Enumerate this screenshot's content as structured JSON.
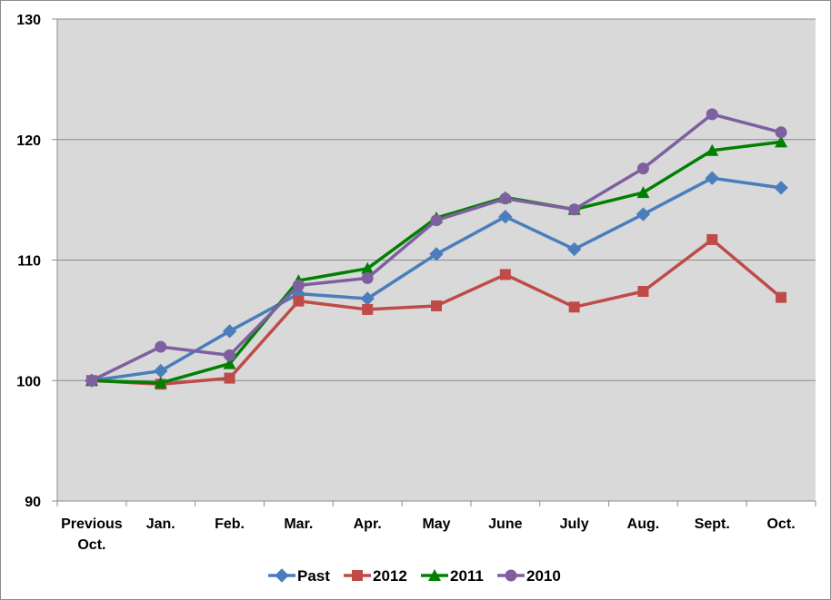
{
  "chart_data": {
    "type": "line",
    "title": "",
    "xlabel": "",
    "ylabel": "",
    "ylim": [
      90,
      130
    ],
    "yticks": [
      "90",
      "100",
      "110",
      "120",
      "130"
    ],
    "categories": [
      [
        "Previous",
        "Oct."
      ],
      [
        "Jan."
      ],
      [
        "Feb."
      ],
      [
        "Mar."
      ],
      [
        "Apr."
      ],
      [
        "May"
      ],
      [
        "June"
      ],
      [
        "July"
      ],
      [
        "Aug."
      ],
      [
        "Sept."
      ],
      [
        "Oct."
      ]
    ],
    "grid": "horizontal",
    "legend": "bottom",
    "series": [
      {
        "name": "Past",
        "color": "#4a7ebb",
        "marker": "diamond",
        "values": [
          100.0,
          100.8,
          104.1,
          107.2,
          106.8,
          110.5,
          113.6,
          110.9,
          113.8,
          116.8,
          116.0
        ]
      },
      {
        "name": "2012",
        "color": "#be4b48",
        "marker": "square",
        "values": [
          100.0,
          99.7,
          100.2,
          106.6,
          105.9,
          106.2,
          108.8,
          106.1,
          107.4,
          111.7,
          106.9
        ]
      },
      {
        "name": "2011",
        "color": "#008000",
        "marker": "triangle",
        "values": [
          100.0,
          99.8,
          101.4,
          108.3,
          109.3,
          113.5,
          115.2,
          114.2,
          115.6,
          119.1,
          119.8
        ]
      },
      {
        "name": "2010",
        "color": "#7e5fa0",
        "marker": "circle",
        "values": [
          100.0,
          102.8,
          102.1,
          107.9,
          108.5,
          113.3,
          115.1,
          114.2,
          117.6,
          122.1,
          120.6
        ]
      }
    ]
  }
}
